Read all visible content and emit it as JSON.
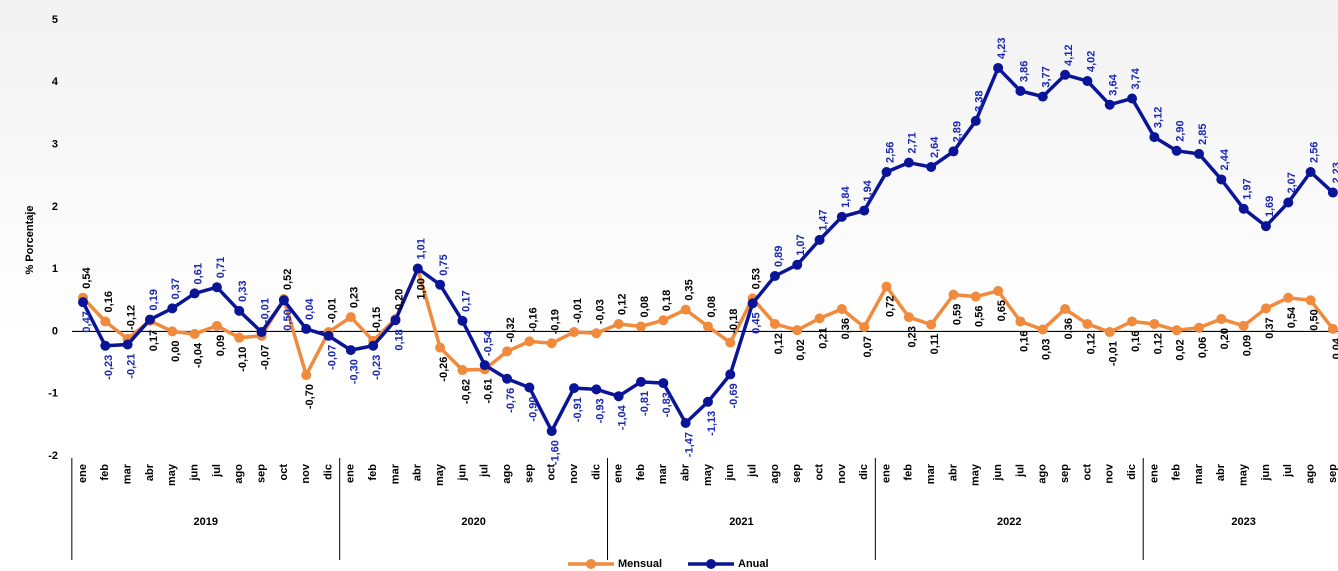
{
  "chart_data": {
    "type": "line",
    "y_label": "% Porcentaje",
    "groups": [
      {
        "label": "2019",
        "categories": [
          "ene",
          "feb",
          "mar",
          "abr",
          "may",
          "jun",
          "jul",
          "ago",
          "sep",
          "oct",
          "nov",
          "dic"
        ]
      },
      {
        "label": "2020",
        "categories": [
          "ene",
          "feb",
          "mar",
          "abr",
          "may",
          "jun",
          "jul",
          "ago",
          "sep",
          "oct",
          "nov",
          "dic"
        ]
      },
      {
        "label": "2021",
        "categories": [
          "ene",
          "feb",
          "mar",
          "abr",
          "may",
          "jun",
          "jul",
          "ago",
          "sep",
          "oct",
          "nov",
          "dic"
        ]
      },
      {
        "label": "2022",
        "categories": [
          "ene",
          "feb",
          "mar",
          "abr",
          "may",
          "jun",
          "jul",
          "ago",
          "sep",
          "oct",
          "nov",
          "dic"
        ]
      },
      {
        "label": "2023",
        "categories": [
          "ene",
          "feb",
          "mar",
          "abr",
          "may",
          "jun",
          "jul",
          "ago",
          "sep"
        ]
      }
    ],
    "ylim": [
      -2,
      5
    ],
    "yticks": [
      -2,
      -1,
      0,
      1,
      2,
      3,
      4,
      5
    ],
    "series": [
      {
        "name": "Mensual",
        "color": "#f08a3c",
        "label_color": "#000000",
        "values": [
          0.54,
          0.16,
          -0.12,
          0.17,
          0.0,
          -0.04,
          0.09,
          -0.1,
          -0.07,
          0.52,
          -0.7,
          -0.01,
          0.23,
          -0.15,
          0.2,
          1.0,
          -0.26,
          -0.62,
          -0.61,
          -0.32,
          -0.16,
          -0.19,
          -0.01,
          -0.03,
          0.12,
          0.08,
          0.18,
          0.35,
          0.08,
          -0.18,
          0.53,
          0.12,
          0.02,
          0.21,
          0.36,
          0.07,
          0.72,
          0.23,
          0.11,
          0.59,
          0.56,
          0.65,
          0.16,
          0.03,
          0.36,
          0.12,
          -0.01,
          0.16,
          0.12,
          0.02,
          0.06,
          0.2,
          0.09,
          0.37,
          0.54,
          0.5,
          0.04
        ],
        "value_labels": [
          "0,54",
          "0,16",
          "-0,12",
          "0,17",
          "0,00",
          "-0,04",
          "0,09",
          "-0,10",
          "-0,07",
          "0,52",
          "-0,70",
          "-0,01",
          "0,23",
          "-0,15",
          "0,20",
          "1,00",
          "-0,26",
          "-0,62",
          "-0,61",
          "-0,32",
          "-0,16",
          "-0,19",
          "-0,01",
          "-0,03",
          "0,12",
          "0,08",
          "0,18",
          "0,35",
          "0,08",
          "-0,18",
          "0,53",
          "0,12",
          "0,02",
          "0,21",
          "0,36",
          "0,07",
          "0,72",
          "0,23",
          "0,11",
          "0,59",
          "0,56",
          "0,65",
          "0,16",
          "0,03",
          "0,36",
          "0,12",
          "-0,01",
          "0,16",
          "0,12",
          "0,02",
          "0,06",
          "0,20",
          "0,09",
          "0,37",
          "0,54",
          "0,50",
          "0,04"
        ]
      },
      {
        "name": "Anual",
        "color": "#0a1496",
        "label_color": "#1a28b4",
        "values": [
          0.47,
          -0.23,
          -0.21,
          0.19,
          0.37,
          0.61,
          0.71,
          0.33,
          -0.01,
          0.5,
          0.04,
          -0.07,
          -0.3,
          -0.23,
          0.18,
          1.01,
          0.75,
          0.17,
          -0.54,
          -0.76,
          -0.9,
          -1.6,
          -0.91,
          -0.93,
          -1.04,
          -0.81,
          -0.83,
          -1.47,
          -1.13,
          -0.69,
          0.45,
          0.89,
          1.07,
          1.47,
          1.84,
          1.94,
          2.56,
          2.71,
          2.64,
          2.89,
          3.38,
          4.23,
          3.86,
          3.77,
          4.12,
          4.02,
          3.64,
          3.74,
          3.12,
          2.9,
          2.85,
          2.44,
          1.97,
          1.69,
          2.07,
          2.56,
          2.23
        ],
        "value_labels": [
          "0,47",
          "-0,23",
          "-0,21",
          "0,19",
          "0,37",
          "0,61",
          "0,71",
          "0,33",
          "-0,01",
          "0,50",
          "0,04",
          "-0,07",
          "-0,30",
          "-0,23",
          "0,18",
          "1,01",
          "0,75",
          "0,17",
          "-0,54",
          "-0,76",
          "-0,90",
          "-1,60",
          "-0,91",
          "-0,93",
          "-1,04",
          "-0,81",
          "-0,83",
          "-1,47",
          "-1,13",
          "-0,69",
          "0,45",
          "0,89",
          "1,07",
          "1,47",
          "1,84",
          "1,94",
          "2,56",
          "2,71",
          "2,64",
          "2,89",
          "3,38",
          "4,23",
          "3,86",
          "3,77",
          "4,12",
          "4,02",
          "3,64",
          "3,74",
          "3,12",
          "2,90",
          "2,85",
          "2,44",
          "1,97",
          "1,69",
          "2,07",
          "2,56",
          "2,23"
        ]
      }
    ]
  }
}
